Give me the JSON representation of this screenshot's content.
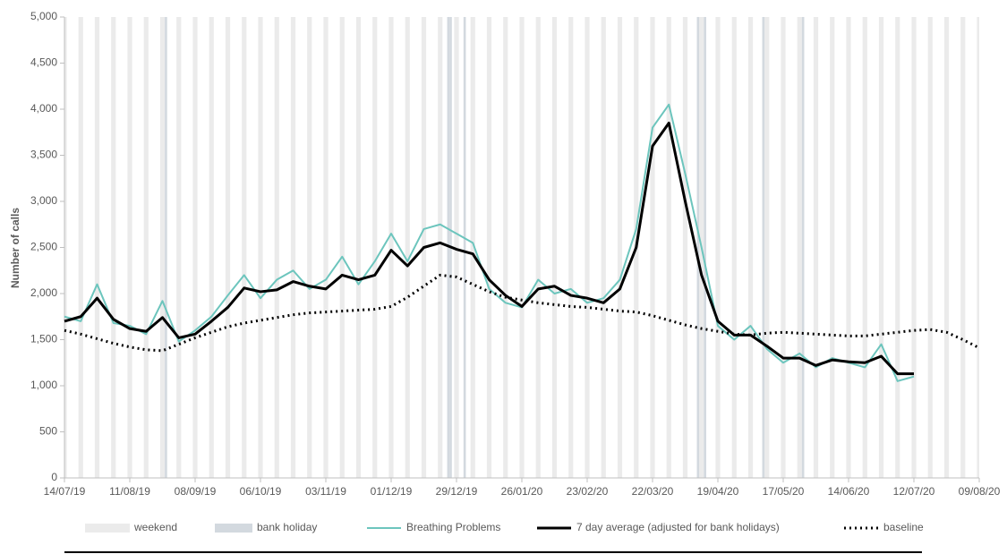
{
  "chart_data": {
    "type": "line",
    "y_label": "Number of calls",
    "xlim": [
      "14/07/19",
      "09/08/20"
    ],
    "xticks": [
      "14/07/19",
      "11/08/19",
      "08/09/19",
      "06/10/19",
      "03/11/19",
      "01/12/19",
      "29/12/19",
      "26/01/20",
      "23/02/20",
      "22/03/20",
      "19/04/20",
      "17/05/20",
      "14/06/20",
      "12/07/20",
      "09/08/20"
    ],
    "ylim": [
      0,
      5000
    ],
    "yticks": [
      0,
      500,
      {
        "value": 1000,
        "label": "1,000"
      },
      {
        "value": 1500,
        "label": "1,500"
      },
      {
        "value": 2000,
        "label": "2,000"
      },
      {
        "value": 2500,
        "label": "2,500"
      },
      {
        "value": 3000,
        "label": "3,000"
      },
      {
        "value": 3500,
        "label": "3,500"
      },
      {
        "value": 4000,
        "label": "4,000"
      },
      {
        "value": 4500,
        "label": "4,500"
      },
      {
        "value": 5000,
        "label": "5,000"
      }
    ],
    "shading": [
      {
        "name": "weekend",
        "color": "#ebebeb"
      },
      {
        "name": "bank holiday",
        "color": "#d3d9df",
        "dates": [
          "26/08/19",
          "25/12/19",
          "26/12/19",
          "01/01/20",
          "10/04/20",
          "13/04/20",
          "08/05/20",
          "25/05/20"
        ]
      }
    ],
    "x": [
      "14/07/19",
      "21/07/19",
      "28/07/19",
      "04/08/19",
      "11/08/19",
      "18/08/19",
      "25/08/19",
      "01/09/19",
      "08/09/19",
      "15/09/19",
      "22/09/19",
      "29/09/19",
      "06/10/19",
      "13/10/19",
      "20/10/19",
      "27/10/19",
      "03/11/19",
      "10/11/19",
      "17/11/19",
      "24/11/19",
      "01/12/19",
      "08/12/19",
      "15/12/19",
      "22/12/19",
      "29/12/19",
      "05/01/20",
      "12/01/20",
      "19/01/20",
      "26/01/20",
      "02/02/20",
      "09/02/20",
      "16/02/20",
      "23/02/20",
      "01/03/20",
      "08/03/20",
      "15/03/20",
      "22/03/20",
      "29/03/20",
      "05/04/20",
      "12/04/20",
      "19/04/20",
      "26/04/20",
      "03/05/20",
      "10/05/20",
      "17/05/20",
      "24/05/20",
      "31/05/20",
      "07/06/20",
      "14/06/20",
      "21/06/20",
      "28/06/20",
      "05/07/20",
      "12/07/20",
      "19/07/20",
      "26/07/20",
      "02/08/20",
      "09/08/20"
    ],
    "series": [
      {
        "name": "Breathing Problems",
        "color": "#6cc5bd",
        "width": 2,
        "dash": "solid",
        "values": [
          1750,
          1700,
          2100,
          1680,
          1650,
          1560,
          1920,
          1480,
          1600,
          1750,
          1980,
          2200,
          1950,
          2150,
          2250,
          2050,
          2150,
          2400,
          2100,
          2350,
          2650,
          2350,
          2700,
          2750,
          2650,
          2550,
          2050,
          1900,
          1850,
          2150,
          2000,
          2050,
          1900,
          1950,
          2150,
          2700,
          3800,
          4050,
          3300,
          2500,
          1650,
          1500,
          1650,
          1400,
          1250,
          1350,
          1200,
          1300,
          1250,
          1200,
          1450,
          1050,
          1100,
          null,
          null,
          null,
          null
        ]
      },
      {
        "name": "7 day average (adjusted for bank holidays)",
        "color": "#000000",
        "width": 3,
        "dash": "solid",
        "values": [
          1700,
          1750,
          1950,
          1720,
          1620,
          1590,
          1740,
          1520,
          1560,
          1700,
          1850,
          2060,
          2020,
          2040,
          2130,
          2080,
          2050,
          2200,
          2150,
          2200,
          2470,
          2300,
          2500,
          2550,
          2480,
          2430,
          2150,
          1980,
          1860,
          2050,
          2080,
          1980,
          1950,
          1900,
          2050,
          2500,
          3600,
          3850,
          3000,
          2200,
          1700,
          1550,
          1550,
          1430,
          1300,
          1300,
          1220,
          1280,
          1260,
          1250,
          1320,
          1130,
          1130,
          null,
          null,
          null,
          null
        ]
      },
      {
        "name": "baseline",
        "color": "#000000",
        "width": 3,
        "dash": "dotted",
        "values": [
          1600,
          1560,
          1510,
          1460,
          1420,
          1390,
          1380,
          1450,
          1520,
          1580,
          1640,
          1680,
          1710,
          1740,
          1770,
          1790,
          1800,
          1810,
          1820,
          1830,
          1860,
          1960,
          2080,
          2200,
          2180,
          2100,
          2020,
          1960,
          1930,
          1900,
          1880,
          1860,
          1850,
          1830,
          1810,
          1800,
          1760,
          1710,
          1660,
          1620,
          1590,
          1560,
          1550,
          1570,
          1580,
          1570,
          1560,
          1550,
          1540,
          1540,
          1560,
          1580,
          1600,
          1610,
          1580,
          1500,
          1410
        ]
      }
    ]
  }
}
